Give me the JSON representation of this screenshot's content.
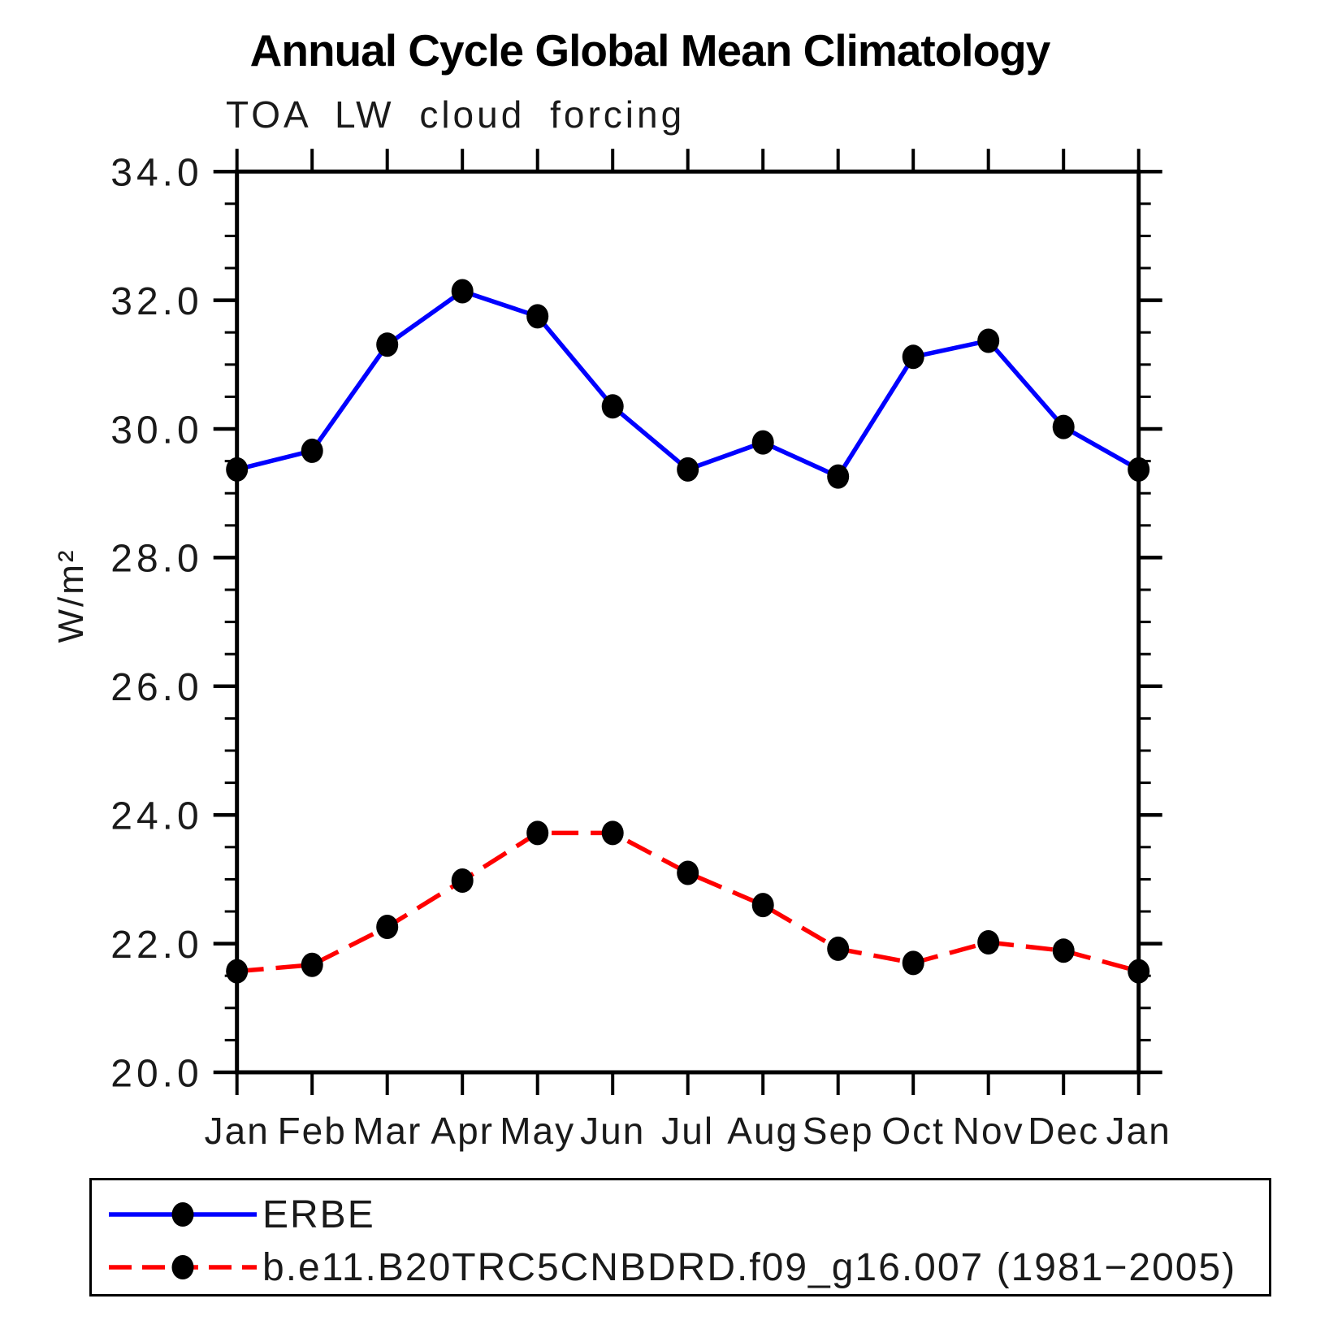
{
  "header": {
    "title": "Annual Cycle Global Mean Climatology"
  },
  "chart_data": {
    "type": "line",
    "title": "Annual Cycle Global Mean Climatology",
    "subtitle": "TOA LW cloud forcing",
    "ylabel": "W/m²",
    "xlabel": "",
    "x_categories": [
      "Jan",
      "Feb",
      "Mar",
      "Apr",
      "May",
      "Jun",
      "Jul",
      "Aug",
      "Sep",
      "Oct",
      "Nov",
      "Dec",
      "Jan"
    ],
    "ylim": [
      20.0,
      34.0
    ],
    "y_major_tick_step": 2.0,
    "y_minor_tick_step": 0.5,
    "y_tick_labels": [
      "20.0",
      "22.0",
      "24.0",
      "26.0",
      "28.0",
      "30.0",
      "32.0",
      "34.0"
    ],
    "grid": false,
    "legend_position": "bottom-box",
    "colors": {
      "erbe_line": "#0000ff",
      "model_line": "#ff0000",
      "marker": "#000000",
      "axis": "#000000"
    },
    "series": [
      {
        "name": "ERBE",
        "line_color": "#0000ff",
        "line_style": "solid",
        "marker": "filled-circle",
        "marker_color": "#000000",
        "values": [
          29.37,
          29.66,
          31.31,
          32.14,
          31.75,
          30.35,
          29.37,
          29.79,
          29.26,
          31.12,
          31.37,
          30.03,
          29.37
        ]
      },
      {
        "name": "b.e11.B20TRC5CNBDRD.f09_g16.007 (1981−2005)",
        "line_color": "#ff0000",
        "line_style": "dashed",
        "marker": "filled-circle",
        "marker_color": "#000000",
        "values": [
          21.57,
          21.67,
          22.26,
          22.98,
          23.72,
          23.72,
          23.1,
          22.6,
          21.92,
          21.7,
          22.02,
          21.89,
          21.57
        ]
      }
    ]
  }
}
